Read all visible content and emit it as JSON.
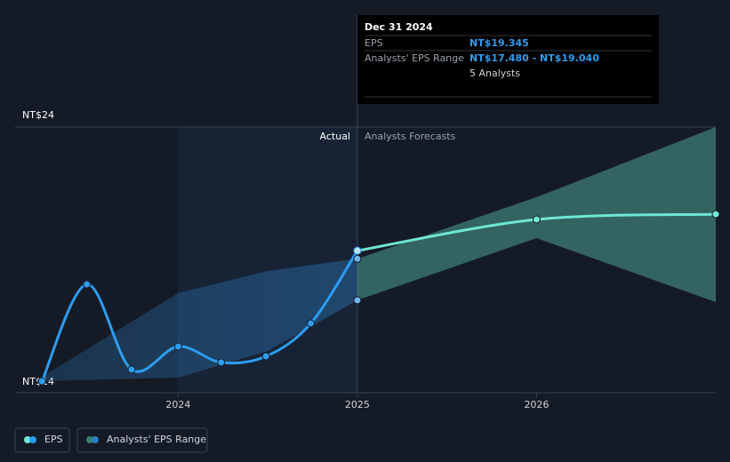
{
  "chart_data": {
    "type": "line",
    "annotations": {
      "actual": "Actual",
      "forecast": "Analysts Forecasts"
    },
    "xlim": [
      2023.09,
      2027.0
    ],
    "xticks": [
      2024,
      2025,
      2026
    ],
    "ylim": [
      14,
      24
    ],
    "yticks": [
      {
        "value": 14,
        "label": "NT$14"
      },
      {
        "value": 24,
        "label": "NT$24"
      }
    ],
    "forecast_start": 2025.0,
    "series": [
      {
        "name": "EPS",
        "color": "#2d9cf0",
        "forecast_color": "#6ee7d5",
        "x": [
          2023.24,
          2023.49,
          2023.74,
          2024.0,
          2024.24,
          2024.49,
          2024.74,
          2025.0,
          2026.0,
          2027.0
        ],
        "values": [
          14.43,
          18.08,
          14.87,
          15.74,
          15.14,
          15.37,
          16.61,
          19.345,
          20.52,
          20.72
        ]
      },
      {
        "name": "Analysts' EPS Range",
        "color": "#2d7fc4",
        "forecast_color": "#3e7d75",
        "x": [
          2023.2,
          2024.0,
          2024.5,
          2025.0,
          2026.0,
          2027.0
        ],
        "low": [
          14.43,
          14.57,
          15.57,
          17.48,
          19.82,
          17.41
        ],
        "high": [
          14.43,
          17.75,
          18.58,
          19.04,
          21.36,
          24
        ]
      }
    ],
    "tooltip": {
      "date": "Dec 31 2024",
      "eps_label": "EPS",
      "eps_value": "NT$19.345",
      "range_label": "Analysts' EPS Range",
      "range_value": "NT$17.480 - NT$19.040",
      "analysts": "5 Analysts"
    }
  }
}
